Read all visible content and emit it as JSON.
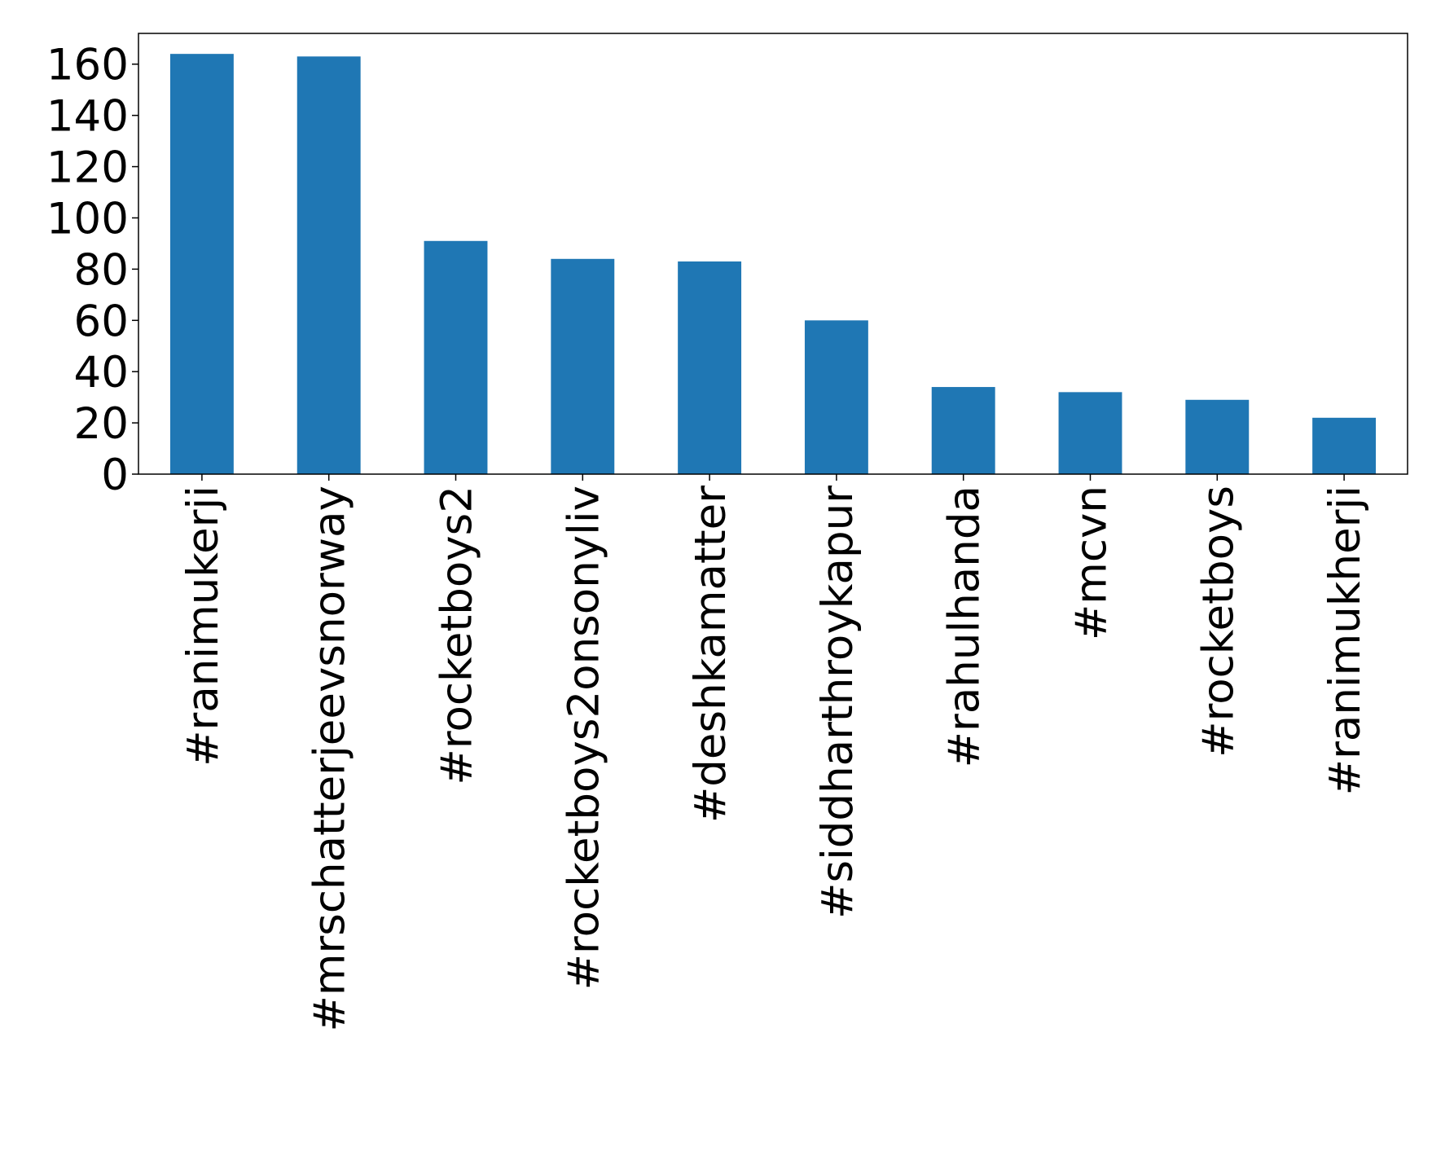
{
  "chart_data": {
    "type": "bar",
    "categories": [
      "#ranimukerji",
      "#mrschatterjeevsnorway",
      "#rocketboys2",
      "#rocketboys2onsonyliv",
      "#deshkamatter",
      "#siddharthroykapur",
      "#rahulhanda",
      "#mcvn",
      "#rocketboys",
      "#ranimukherji"
    ],
    "values": [
      164,
      163,
      91,
      84,
      83,
      60,
      34,
      32,
      29,
      22
    ],
    "color": "#1f77b4",
    "ylim": [
      0,
      172
    ],
    "yticks": [
      0,
      20,
      40,
      60,
      80,
      100,
      120,
      140,
      160
    ],
    "grid": false
  }
}
